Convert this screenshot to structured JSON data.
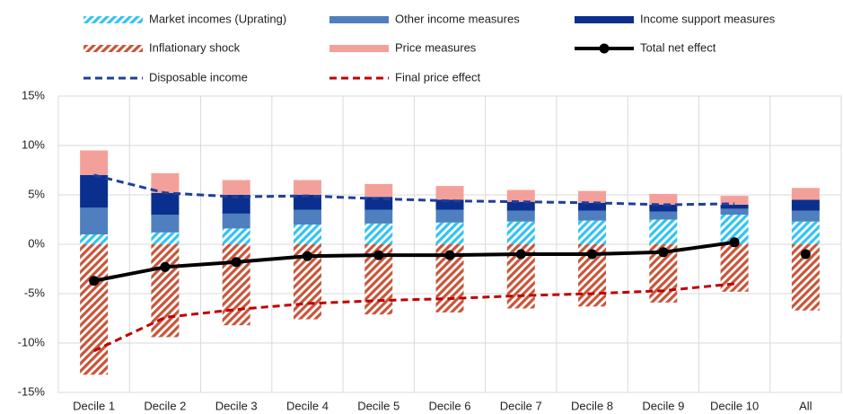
{
  "chart_data": {
    "type": "bar",
    "categories": [
      "Decile 1",
      "Decile 2",
      "Decile 3",
      "Decile 4",
      "Decile 5",
      "Decile 6",
      "Decile 7",
      "Decile 8",
      "Decile 9",
      "Decile 10",
      "All"
    ],
    "ylim": [
      -15,
      15
    ],
    "yticks": [
      {
        "value": -15,
        "label": "-15%"
      },
      {
        "value": -10,
        "label": "-10%"
      },
      {
        "value": -5,
        "label": "-5%"
      },
      {
        "value": 0,
        "label": "0%"
      },
      {
        "value": 5,
        "label": "5%"
      },
      {
        "value": 10,
        "label": "10%"
      },
      {
        "value": 15,
        "label": "15%"
      }
    ],
    "grid": true,
    "series": [
      {
        "name": "Market incomes (Uprating)",
        "kind": "bar",
        "pattern": "stripes",
        "color": "#33c3f0",
        "values": [
          1.0,
          1.2,
          1.6,
          2.0,
          2.1,
          2.2,
          2.3,
          2.4,
          2.5,
          3.0,
          2.3
        ]
      },
      {
        "name": "Other income measures",
        "kind": "bar",
        "color": "#4f7fbf",
        "values": [
          2.7,
          1.8,
          1.5,
          1.5,
          1.4,
          1.3,
          1.1,
          1.0,
          0.8,
          0.6,
          1.1
        ]
      },
      {
        "name": "Income support measures",
        "kind": "bar",
        "color": "#0a2f8f",
        "values": [
          3.3,
          2.2,
          1.9,
          1.5,
          1.3,
          1.0,
          0.9,
          0.8,
          0.7,
          0.4,
          1.1
        ]
      },
      {
        "name": "Inflationary shock",
        "kind": "bar",
        "pattern": "stripes",
        "color": "#c8553a",
        "values": [
          -13.2,
          -9.4,
          -8.2,
          -7.6,
          -7.1,
          -6.9,
          -6.5,
          -6.3,
          -5.9,
          -4.8,
          -6.7
        ]
      },
      {
        "name": "Price measures",
        "kind": "bar",
        "color": "#f4a09a",
        "values": [
          2.5,
          2.0,
          1.5,
          1.5,
          1.3,
          1.4,
          1.2,
          1.2,
          1.1,
          0.9,
          1.2
        ]
      },
      {
        "name": "Total net effect",
        "kind": "line",
        "markers": true,
        "color": "#000000",
        "values": [
          -3.7,
          -2.3,
          -1.8,
          -1.2,
          -1.1,
          -1.1,
          -1.0,
          -1.0,
          -0.8,
          0.2,
          -1.0
        ]
      },
      {
        "name": "Disposable income",
        "kind": "line",
        "dashed": true,
        "color": "#1f3f99",
        "values": [
          7.0,
          5.2,
          4.8,
          4.9,
          4.6,
          4.4,
          4.3,
          4.2,
          4.0,
          4.1,
          null
        ]
      },
      {
        "name": "Final price effect",
        "kind": "line",
        "dashed": true,
        "color": "#c00000",
        "values": [
          -10.8,
          -7.4,
          -6.6,
          -6.0,
          -5.7,
          -5.5,
          -5.2,
          -5.0,
          -4.7,
          -4.0,
          null
        ]
      }
    ]
  }
}
